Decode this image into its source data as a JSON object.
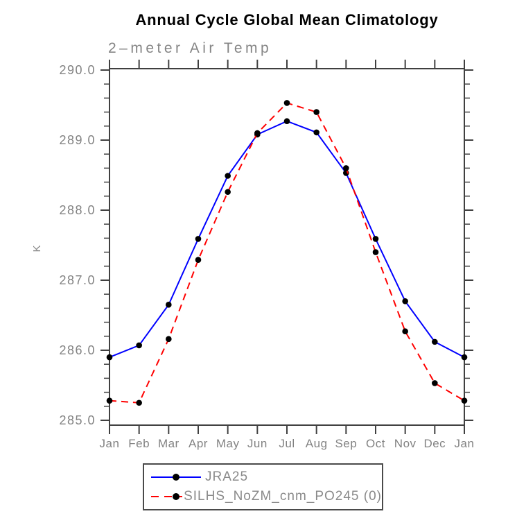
{
  "chart_data": {
    "type": "line",
    "title": "Annual Cycle Global Mean Climatology",
    "subtitle": "2–meter Air Temp",
    "ylabel": "K",
    "categories": [
      "Jan",
      "Feb",
      "Mar",
      "Apr",
      "May",
      "Jun",
      "Jul",
      "Aug",
      "Sep",
      "Oct",
      "Nov",
      "Dec",
      "Jan"
    ],
    "series": [
      {
        "name": "JRA25",
        "color": "#0000ff",
        "style": "solid",
        "values": [
          285.9,
          286.07,
          286.65,
          287.59,
          288.49,
          289.08,
          289.27,
          289.11,
          288.53,
          287.59,
          286.7,
          286.12,
          285.9
        ]
      },
      {
        "name": "SILHS_NoZM_cnm_PO245 (0)",
        "color": "#ff0000",
        "style": "dashed",
        "values": [
          285.28,
          285.25,
          286.16,
          287.29,
          288.26,
          289.1,
          289.53,
          289.4,
          288.6,
          287.4,
          286.27,
          285.53,
          285.28
        ]
      }
    ],
    "y_axis": {
      "min": 285.0,
      "max": 290.0,
      "major_step": 1.0,
      "minor_step": 0.2,
      "tick_labels": [
        "285.0",
        "286.0",
        "287.0",
        "288.0",
        "289.0",
        "290.0"
      ]
    },
    "marker_color": "#000000",
    "legend_position": "bottom",
    "grid": "off"
  },
  "colors": {
    "axis": "#404040",
    "tick_label": "#828282",
    "title": "#000000",
    "subtitle": "#858585",
    "legend_border": "#4a4a4a",
    "series_blue": "#0000ff",
    "series_red": "#ff0000",
    "marker": "#000000"
  }
}
